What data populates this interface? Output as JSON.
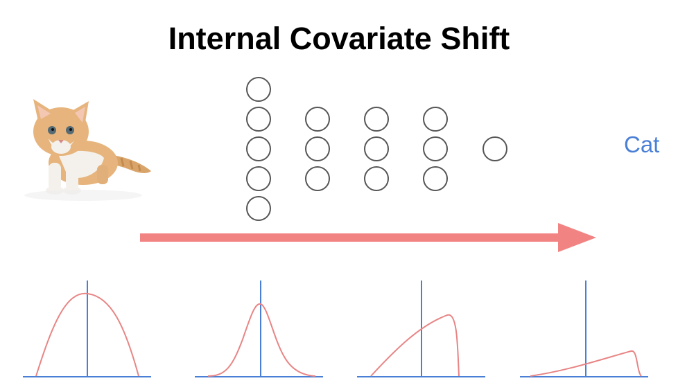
{
  "title": "Internal Covariate Shift",
  "output_label": "Cat",
  "input_image": "kitten-photo",
  "network": {
    "layers": [
      5,
      3,
      3,
      3,
      1
    ],
    "node_stroke": "#555555"
  },
  "flow_arrow": {
    "color": "#f28383"
  },
  "distributions": [
    {
      "shape": "wide-symmetric-bell"
    },
    {
      "shape": "narrow-symmetric-bell"
    },
    {
      "shape": "right-skewed-ramp"
    },
    {
      "shape": "flat-right-skewed-ramp"
    }
  ],
  "colors": {
    "axis": "#4a7fd6",
    "curve": "#e88585",
    "label": "#4a7fd6",
    "arrow": "#f28383"
  }
}
